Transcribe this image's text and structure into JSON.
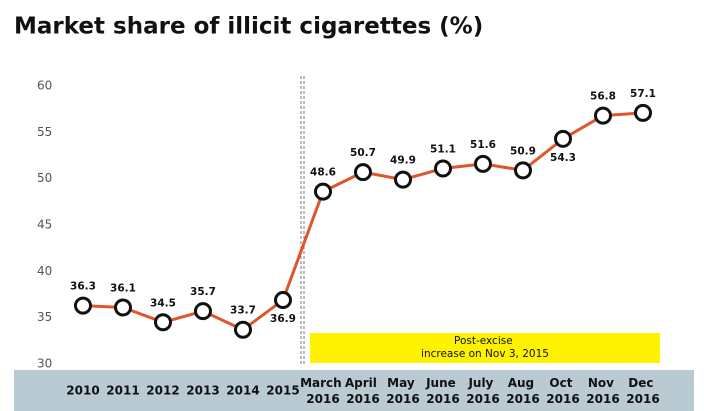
{
  "chart_data": {
    "type": "line",
    "title": "Market share of illicit cigarettes (%)",
    "categories": [
      "2010",
      "2011",
      "2012",
      "2013",
      "2014",
      "2015",
      "March 2016",
      "April 2016",
      "May 2016",
      "June 2016",
      "July 2016",
      "Aug 2016",
      "Oct 2016",
      "Nov 2016",
      "Dec 2016"
    ],
    "series": [
      {
        "name": "Market share",
        "color": "#e0552b",
        "values": [
          36.3,
          36.1,
          34.5,
          35.7,
          33.7,
          36.9,
          48.6,
          50.7,
          49.9,
          51.1,
          51.6,
          50.9,
          54.3,
          56.8,
          57.1
        ]
      }
    ],
    "ylim": [
      30,
      60
    ],
    "yticks": [
      30,
      35,
      40,
      45,
      50,
      55,
      60
    ],
    "annotation": "Post-excise increase on Nov 3, 2015"
  }
}
